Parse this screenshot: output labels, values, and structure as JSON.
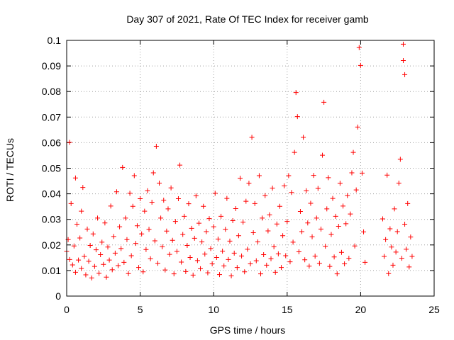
{
  "chart_data": {
    "type": "scatter",
    "title": "Day 307 of 2021, Rate Of TEC Index for receiver gamb",
    "xlabel": "GPS time / hours",
    "ylabel": "ROTI / TECUs",
    "xlim": [
      0,
      25
    ],
    "ylim": [
      0,
      0.1
    ],
    "x_ticks": [
      0,
      5,
      10,
      15,
      20,
      25
    ],
    "x_tick_labels": [
      "0",
      "5",
      "10",
      "15",
      "20",
      "25"
    ],
    "y_ticks": [
      0,
      0.01,
      0.02,
      0.03,
      0.04,
      0.05,
      0.06,
      0.07,
      0.08,
      0.09,
      0.1
    ],
    "y_tick_labels": [
      "0",
      "0.01",
      "0.02",
      "0.03",
      "0.04",
      "0.05",
      "0.06",
      "0.07",
      "0.08",
      "0.09",
      "0.1"
    ],
    "grid": true,
    "marker": "+",
    "color": "#ff0000",
    "data_gap_hours": [
      20.3,
      21.5
    ],
    "series": [
      {
        "name": "ROTI",
        "points": [
          [
            0.0,
            0.0175
          ],
          [
            0.1,
            0.0221
          ],
          [
            0.2,
            0.0601
          ],
          [
            0.2,
            0.0143
          ],
          [
            0.3,
            0.0362
          ],
          [
            0.4,
            0.0122
          ],
          [
            0.5,
            0.0196
          ],
          [
            0.6,
            0.0462
          ],
          [
            0.6,
            0.0093
          ],
          [
            0.7,
            0.0281
          ],
          [
            0.8,
            0.0141
          ],
          [
            0.9,
            0.0227
          ],
          [
            1.0,
            0.0108
          ],
          [
            1.0,
            0.0332
          ],
          [
            1.1,
            0.0425
          ],
          [
            1.2,
            0.0155
          ],
          [
            1.3,
            0.0083
          ],
          [
            1.4,
            0.0262
          ],
          [
            1.5,
            0.0136
          ],
          [
            1.6,
            0.0198
          ],
          [
            1.7,
            0.0071
          ],
          [
            1.8,
            0.0243
          ],
          [
            1.9,
            0.0116
          ],
          [
            2.0,
            0.0181
          ],
          [
            2.1,
            0.0305
          ],
          [
            2.2,
            0.0089
          ],
          [
            2.3,
            0.0162
          ],
          [
            2.4,
            0.0211
          ],
          [
            2.5,
            0.0124
          ],
          [
            2.6,
            0.0286
          ],
          [
            2.7,
            0.0074
          ],
          [
            2.8,
            0.0192
          ],
          [
            2.9,
            0.0141
          ],
          [
            3.0,
            0.0352
          ],
          [
            3.1,
            0.0103
          ],
          [
            3.2,
            0.0233
          ],
          [
            3.3,
            0.0168
          ],
          [
            3.4,
            0.0408
          ],
          [
            3.5,
            0.0119
          ],
          [
            3.6,
            0.0271
          ],
          [
            3.7,
            0.0186
          ],
          [
            3.8,
            0.0503
          ],
          [
            3.9,
            0.0132
          ],
          [
            4.0,
            0.0305
          ],
          [
            4.1,
            0.0221
          ],
          [
            4.2,
            0.0088
          ],
          [
            4.3,
            0.0402
          ],
          [
            4.4,
            0.0158
          ],
          [
            4.5,
            0.0351
          ],
          [
            4.6,
            0.0471
          ],
          [
            4.7,
            0.0206
          ],
          [
            4.8,
            0.0275
          ],
          [
            4.9,
            0.0112
          ],
          [
            5.0,
            0.0381
          ],
          [
            5.1,
            0.0243
          ],
          [
            5.2,
            0.0095
          ],
          [
            5.3,
            0.0332
          ],
          [
            5.4,
            0.0182
          ],
          [
            5.5,
            0.0412
          ],
          [
            5.6,
            0.0261
          ],
          [
            5.7,
            0.0146
          ],
          [
            5.8,
            0.0367
          ],
          [
            5.9,
            0.0482
          ],
          [
            6.0,
            0.0216
          ],
          [
            6.1,
            0.0586
          ],
          [
            6.2,
            0.0128
          ],
          [
            6.3,
            0.0442
          ],
          [
            6.4,
            0.0305
          ],
          [
            6.5,
            0.0193
          ],
          [
            6.6,
            0.0375
          ],
          [
            6.7,
            0.0102
          ],
          [
            6.8,
            0.0254
          ],
          [
            6.9,
            0.0341
          ],
          [
            7.0,
            0.0163
          ],
          [
            7.1,
            0.0423
          ],
          [
            7.2,
            0.0218
          ],
          [
            7.3,
            0.0087
          ],
          [
            7.4,
            0.0292
          ],
          [
            7.5,
            0.0175
          ],
          [
            7.6,
            0.0381
          ],
          [
            7.7,
            0.0512
          ],
          [
            7.8,
            0.0133
          ],
          [
            7.9,
            0.0241
          ],
          [
            8.0,
            0.0312
          ],
          [
            8.1,
            0.0096
          ],
          [
            8.2,
            0.0198
          ],
          [
            8.3,
            0.0361
          ],
          [
            8.4,
            0.0151
          ],
          [
            8.5,
            0.0265
          ],
          [
            8.6,
            0.0082
          ],
          [
            8.7,
            0.0226
          ],
          [
            8.8,
            0.0392
          ],
          [
            8.9,
            0.0139
          ],
          [
            9.0,
            0.0285
          ],
          [
            9.1,
            0.0107
          ],
          [
            9.2,
            0.0212
          ],
          [
            9.3,
            0.0351
          ],
          [
            9.4,
            0.0164
          ],
          [
            9.5,
            0.0252
          ],
          [
            9.6,
            0.0091
          ],
          [
            9.7,
            0.0303
          ],
          [
            9.8,
            0.0186
          ],
          [
            9.9,
            0.0126
          ],
          [
            10.0,
            0.0271
          ],
          [
            10.1,
            0.0402
          ],
          [
            10.2,
            0.0151
          ],
          [
            10.3,
            0.0223
          ],
          [
            10.4,
            0.0084
          ],
          [
            10.5,
            0.0312
          ],
          [
            10.6,
            0.0176
          ],
          [
            10.7,
            0.0118
          ],
          [
            10.8,
            0.0261
          ],
          [
            10.9,
            0.0382
          ],
          [
            11.0,
            0.0143
          ],
          [
            11.1,
            0.0215
          ],
          [
            11.2,
            0.0079
          ],
          [
            11.3,
            0.0295
          ],
          [
            11.4,
            0.0168
          ],
          [
            11.5,
            0.0342
          ],
          [
            11.6,
            0.0112
          ],
          [
            11.7,
            0.0236
          ],
          [
            11.8,
            0.0461
          ],
          [
            11.9,
            0.0157
          ],
          [
            12.0,
            0.0289
          ],
          [
            12.1,
            0.0095
          ],
          [
            12.2,
            0.0371
          ],
          [
            12.3,
            0.0183
          ],
          [
            12.4,
            0.0441
          ],
          [
            12.5,
            0.0126
          ],
          [
            12.6,
            0.0621
          ],
          [
            12.7,
            0.0248
          ],
          [
            12.8,
            0.0362
          ],
          [
            12.9,
            0.0138
          ],
          [
            13.0,
            0.0212
          ],
          [
            13.1,
            0.0471
          ],
          [
            13.2,
            0.0087
          ],
          [
            13.3,
            0.0305
          ],
          [
            13.4,
            0.0162
          ],
          [
            13.5,
            0.0393
          ],
          [
            13.6,
            0.0121
          ],
          [
            13.7,
            0.0255
          ],
          [
            13.8,
            0.0318
          ],
          [
            13.9,
            0.0146
          ],
          [
            14.0,
            0.0422
          ],
          [
            14.1,
            0.0193
          ],
          [
            14.2,
            0.0093
          ],
          [
            14.3,
            0.0282
          ],
          [
            14.4,
            0.0165
          ],
          [
            14.5,
            0.0351
          ],
          [
            14.6,
            0.0112
          ],
          [
            14.7,
            0.0236
          ],
          [
            14.8,
            0.0431
          ],
          [
            14.9,
            0.0158
          ],
          [
            15.0,
            0.0292
          ],
          [
            15.1,
            0.0471
          ],
          [
            15.2,
            0.0134
          ],
          [
            15.3,
            0.0405
          ],
          [
            15.4,
            0.0211
          ],
          [
            15.5,
            0.0562
          ],
          [
            15.6,
            0.0796
          ],
          [
            15.7,
            0.0702
          ],
          [
            15.8,
            0.0173
          ],
          [
            15.9,
            0.0331
          ],
          [
            16.0,
            0.0252
          ],
          [
            16.1,
            0.0621
          ],
          [
            16.2,
            0.0142
          ],
          [
            16.3,
            0.0412
          ],
          [
            16.4,
            0.0286
          ],
          [
            16.5,
            0.0117
          ],
          [
            16.6,
            0.0363
          ],
          [
            16.7,
            0.0232
          ],
          [
            16.8,
            0.0472
          ],
          [
            16.9,
            0.0156
          ],
          [
            17.0,
            0.0305
          ],
          [
            17.1,
            0.0421
          ],
          [
            17.2,
            0.0128
          ],
          [
            17.3,
            0.0262
          ],
          [
            17.4,
            0.0551
          ],
          [
            17.5,
            0.0758
          ],
          [
            17.6,
            0.0195
          ],
          [
            17.7,
            0.0341
          ],
          [
            17.8,
            0.0463
          ],
          [
            17.9,
            0.0116
          ],
          [
            18.0,
            0.0241
          ],
          [
            18.1,
            0.0382
          ],
          [
            18.2,
            0.0153
          ],
          [
            18.3,
            0.0312
          ],
          [
            18.4,
            0.0087
          ],
          [
            18.5,
            0.0273
          ],
          [
            18.6,
            0.0441
          ],
          [
            18.7,
            0.0171
          ],
          [
            18.8,
            0.0352
          ],
          [
            18.9,
            0.0126
          ],
          [
            19.0,
            0.0283
          ],
          [
            19.1,
            0.0393
          ],
          [
            19.2,
            0.0148
          ],
          [
            19.3,
            0.0321
          ],
          [
            19.4,
            0.0482
          ],
          [
            19.5,
            0.0562
          ],
          [
            19.6,
            0.0196
          ],
          [
            19.7,
            0.0415
          ],
          [
            19.8,
            0.0661
          ],
          [
            19.9,
            0.0972
          ],
          [
            20.0,
            0.0902
          ],
          [
            20.1,
            0.0481
          ],
          [
            20.2,
            0.0251
          ],
          [
            20.3,
            0.0132
          ],
          [
            21.5,
            0.0302
          ],
          [
            21.6,
            0.0155
          ],
          [
            21.7,
            0.0221
          ],
          [
            21.8,
            0.0473
          ],
          [
            21.9,
            0.0088
          ],
          [
            22.0,
            0.0263
          ],
          [
            22.1,
            0.0192
          ],
          [
            22.2,
            0.0121
          ],
          [
            22.3,
            0.0341
          ],
          [
            22.4,
            0.0172
          ],
          [
            22.5,
            0.0252
          ],
          [
            22.6,
            0.0442
          ],
          [
            22.7,
            0.0535
          ],
          [
            22.8,
            0.0148
          ],
          [
            22.9,
            0.0985
          ],
          [
            22.9,
            0.0921
          ],
          [
            23.0,
            0.0866
          ],
          [
            23.0,
            0.0281
          ],
          [
            23.1,
            0.0183
          ],
          [
            23.2,
            0.0362
          ],
          [
            23.3,
            0.0114
          ],
          [
            23.4,
            0.0231
          ],
          [
            23.5,
            0.0155
          ]
        ]
      }
    ]
  }
}
